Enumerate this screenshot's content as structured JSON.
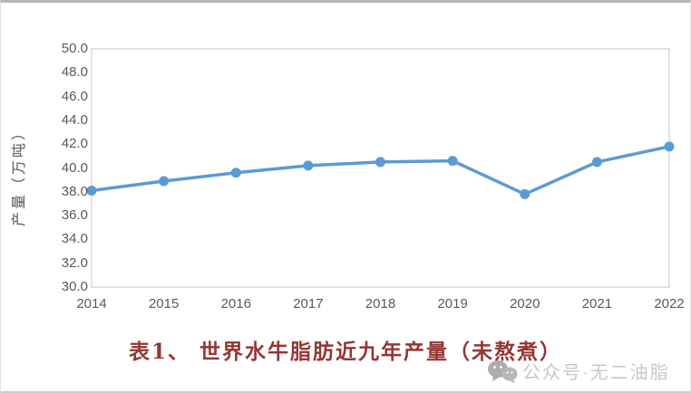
{
  "chart_data": {
    "type": "line",
    "x": [
      "2014",
      "2015",
      "2016",
      "2017",
      "2018",
      "2019",
      "2020",
      "2021",
      "2022"
    ],
    "series": [
      {
        "name": "产量",
        "values": [
          38.1,
          38.9,
          39.6,
          40.2,
          40.5,
          40.6,
          37.8,
          40.5,
          41.8
        ]
      }
    ],
    "title": "表1、 世界水牛脂肪近九年产量（未熬煮）",
    "xlabel": "",
    "ylabel": "产量（万吨）",
    "ylim": [
      30.0,
      50.0
    ],
    "ytick_step": 2.0,
    "ytick_labels": [
      "30.0",
      "32.0",
      "34.0",
      "36.0",
      "38.0",
      "40.0",
      "42.0",
      "44.0",
      "46.0",
      "48.0",
      "50.0"
    ],
    "grid": false,
    "legend": "none",
    "line_color": "#5b9bd5",
    "marker_color": "#5b9bd5",
    "plot_border_color": "#d9d9d9",
    "axis_label_color": "#595959",
    "title_color": "#943634"
  },
  "watermark": {
    "icon": "wechat-icon",
    "text": "公众号·无二油脂",
    "color": "#c6c6c6"
  }
}
